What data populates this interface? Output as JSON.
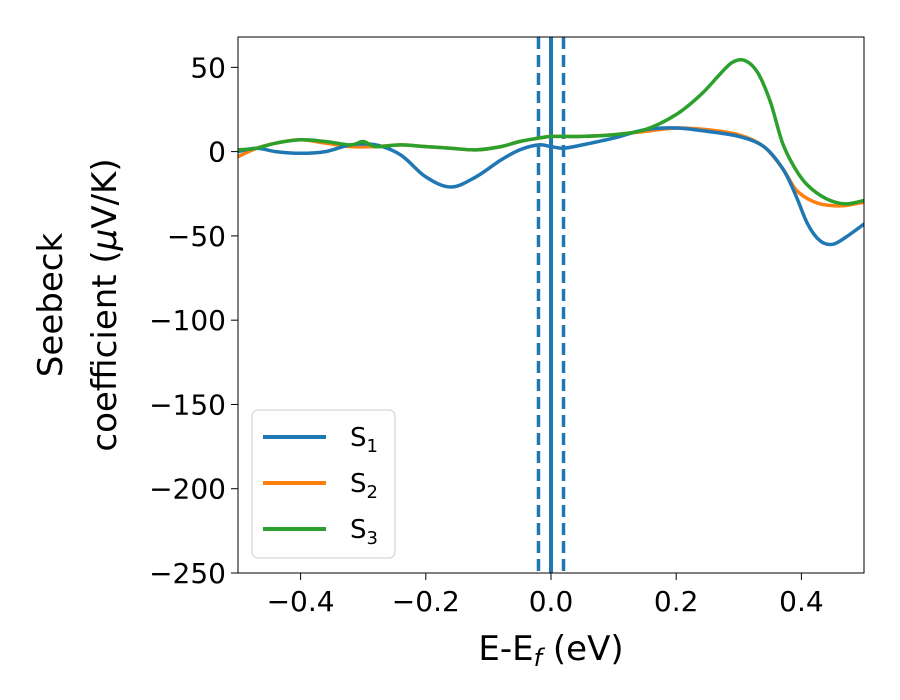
{
  "chart_data": {
    "type": "line",
    "xlabel": "E-E",
    "xlabel_sub": "f",
    "xlabel_unit": " (eV)",
    "ylabel_line1": "Seebeck",
    "ylabel_line2": "coefficient  (",
    "ylabel_mu": "μ",
    "ylabel_unit": "V/K)",
    "xlim": [
      -0.5,
      0.5
    ],
    "ylim": [
      -250,
      68
    ],
    "xticks": [
      -0.4,
      -0.2,
      0.0,
      0.2,
      0.4
    ],
    "xtick_labels": [
      "−0.4",
      "−0.2",
      "0.0",
      "0.2",
      "0.4"
    ],
    "yticks": [
      50,
      0,
      -50,
      -100,
      -150,
      -200,
      -250
    ],
    "ytick_labels": [
      "50",
      "0",
      "−50",
      "−100",
      "−150",
      "−200",
      "−250"
    ],
    "grid": false,
    "legend_position": "lower-left",
    "vlines": [
      {
        "x": 0.0,
        "color": "#000000",
        "style": "dashed"
      },
      {
        "x": -0.02,
        "color": "#1f77b4",
        "style": "dashed"
      },
      {
        "x": 0.0,
        "color": "#1f77b4",
        "style": "solid-thick"
      },
      {
        "x": 0.02,
        "color": "#1f77b4",
        "style": "dashed"
      }
    ],
    "series": [
      {
        "name": "S",
        "sub": "1",
        "color": "#1f77b4",
        "x": [
          -0.5,
          -0.47,
          -0.44,
          -0.4,
          -0.36,
          -0.32,
          -0.28,
          -0.24,
          -0.2,
          -0.16,
          -0.12,
          -0.08,
          -0.05,
          -0.02,
          0.0,
          0.02,
          0.05,
          0.1,
          0.15,
          0.2,
          0.25,
          0.3,
          0.34,
          0.37,
          0.39,
          0.41,
          0.43,
          0.45,
          0.47,
          0.5
        ],
        "y": [
          0,
          2,
          0,
          -1,
          0,
          4,
          4,
          -2,
          -15,
          -21,
          -15,
          -5,
          1,
          4,
          3,
          2,
          4,
          8,
          13,
          14,
          12,
          9,
          3,
          -10,
          -25,
          -43,
          -53,
          -55,
          -51,
          -43
        ]
      },
      {
        "name": "S",
        "sub": "2",
        "color": "#ff7f0e",
        "x": [
          -0.5,
          -0.47,
          -0.44,
          -0.4,
          -0.36,
          -0.32,
          -0.28,
          -0.24,
          -0.2,
          -0.16,
          -0.12,
          -0.08,
          -0.05,
          -0.02,
          0.0,
          0.02,
          0.05,
          0.1,
          0.15,
          0.2,
          0.25,
          0.3,
          0.34,
          0.37,
          0.39,
          0.41,
          0.43,
          0.45,
          0.47,
          0.5
        ],
        "y": [
          -3,
          2,
          5,
          7,
          5,
          3,
          3,
          4,
          3,
          2,
          1,
          3,
          6,
          8,
          9,
          9,
          9,
          10,
          12,
          14,
          13,
          10,
          3,
          -10,
          -22,
          -28,
          -31,
          -32,
          -32,
          -30
        ]
      },
      {
        "name": "S",
        "sub": "3",
        "color": "#2ca02c",
        "x": [
          -0.5,
          -0.47,
          -0.44,
          -0.4,
          -0.36,
          -0.32,
          -0.3,
          -0.28,
          -0.24,
          -0.2,
          -0.16,
          -0.12,
          -0.08,
          -0.05,
          -0.02,
          0.0,
          0.02,
          0.05,
          0.1,
          0.15,
          0.2,
          0.24,
          0.27,
          0.29,
          0.31,
          0.33,
          0.35,
          0.37,
          0.39,
          0.41,
          0.44,
          0.47,
          0.5
        ],
        "y": [
          1,
          2,
          5,
          7,
          6,
          4,
          6,
          3,
          4,
          3,
          2,
          1,
          3,
          6,
          8,
          9,
          9,
          9,
          10,
          13,
          22,
          34,
          46,
          53,
          54,
          47,
          30,
          5,
          -10,
          -20,
          -28,
          -31,
          -29
        ]
      }
    ]
  }
}
